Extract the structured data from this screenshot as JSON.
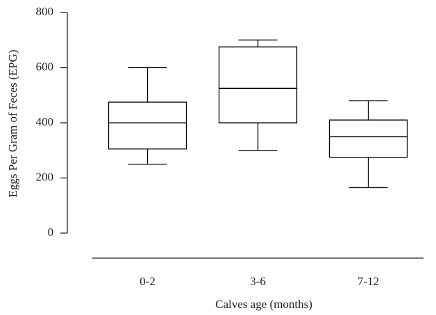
{
  "chart_data": {
    "type": "box",
    "xlabel": "Calves age (months)",
    "ylabel": "Eggs Per Gram of Feces (EPG)",
    "categories": [
      "0-2",
      "3-6",
      "7-12"
    ],
    "min": [
      250,
      300,
      165
    ],
    "q1": [
      305,
      400,
      275
    ],
    "median": [
      400,
      525,
      350
    ],
    "q3": [
      475,
      675,
      410
    ],
    "max": [
      600,
      700,
      480
    ],
    "ylim": [
      0,
      800
    ],
    "yticks": [
      0,
      200,
      400,
      600,
      800
    ],
    "color": "#000000"
  }
}
